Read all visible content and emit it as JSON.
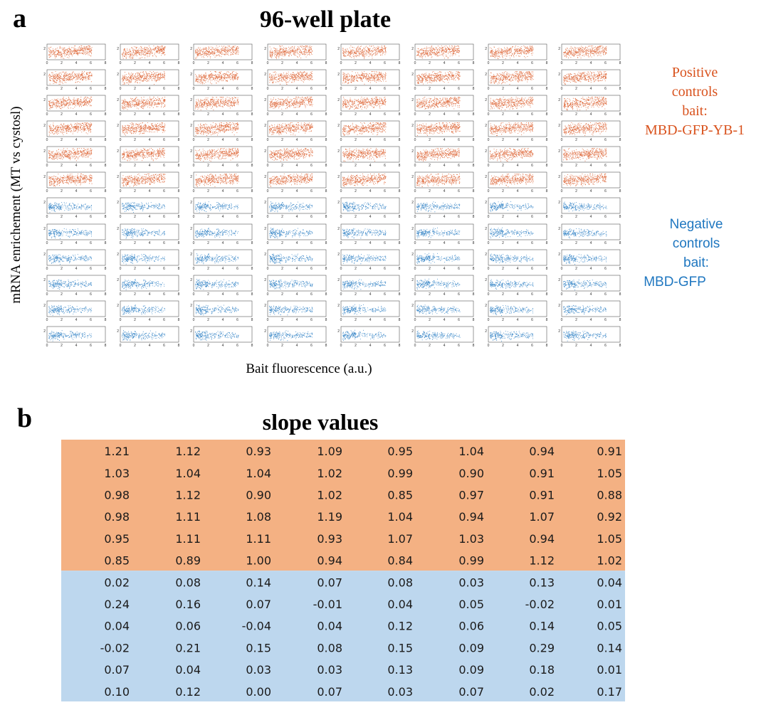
{
  "panel_a": {
    "letter": "a",
    "title": "96-well plate",
    "ylabel": "mRNA enrichement (MT vs cystosl)",
    "xlabel": "Bait fluorescence (a.u.)",
    "tick_labels_x": [
      "0",
      "2",
      "4",
      "6",
      "8"
    ],
    "tick_label_y": "2",
    "positive_label": [
      "Positive",
      "controls",
      "bait:",
      "MBD-GFP-YB-1"
    ],
    "negative_label": [
      "Negative",
      "controls",
      "bait:",
      "MBD-GFP"
    ],
    "colors": {
      "positive": "#d9531e",
      "negative": "#1f77c0"
    }
  },
  "panel_b": {
    "letter": "b",
    "title": "slope values",
    "colors": {
      "positive_bg": "#f4b183",
      "negative_bg": "#bdd7ee"
    }
  },
  "chart_data": [
    {
      "type": "scatter",
      "title": "96-well plate",
      "xlabel": "Bait fluorescence (a.u.)",
      "ylabel": "mRNA enrichement (MT vs cystosl)",
      "grid": "12 rows x 8 columns of small scatter plots",
      "xlim": [
        0,
        8
      ],
      "rows_positive": 6,
      "rows_negative": 6,
      "series": [
        {
          "name": "Positive controls bait: MBD-GFP-YB-1",
          "rows": [
            1,
            2,
            3,
            4,
            5,
            6
          ]
        },
        {
          "name": "Negative controls bait: MBD-GFP",
          "rows": [
            7,
            8,
            9,
            10,
            11,
            12
          ]
        }
      ]
    },
    {
      "type": "table",
      "title": "slope values",
      "rows": [
        [
          "1.21",
          "1.12",
          "0.93",
          "1.09",
          "0.95",
          "1.04",
          "0.94",
          "0.91"
        ],
        [
          "1.03",
          "1.04",
          "1.04",
          "1.02",
          "0.99",
          "0.90",
          "0.91",
          "1.05"
        ],
        [
          "0.98",
          "1.12",
          "0.90",
          "1.02",
          "0.85",
          "0.97",
          "0.91",
          "0.88"
        ],
        [
          "0.98",
          "1.11",
          "1.08",
          "1.19",
          "1.04",
          "0.94",
          "1.07",
          "0.92"
        ],
        [
          "0.95",
          "1.11",
          "1.11",
          "0.93",
          "1.07",
          "1.03",
          "0.94",
          "1.05"
        ],
        [
          "0.85",
          "0.89",
          "1.00",
          "0.94",
          "0.84",
          "0.99",
          "1.12",
          "1.02"
        ],
        [
          "0.02",
          "0.08",
          "0.14",
          "0.07",
          "0.08",
          "0.03",
          "0.13",
          "0.04"
        ],
        [
          "0.24",
          "0.16",
          "0.07",
          "-0.01",
          "0.04",
          "0.05",
          "-0.02",
          "0.01"
        ],
        [
          "0.04",
          "0.06",
          "-0.04",
          "0.04",
          "0.12",
          "0.06",
          "0.14",
          "0.05"
        ],
        [
          "-0.02",
          "0.21",
          "0.15",
          "0.08",
          "0.15",
          "0.09",
          "0.29",
          "0.14"
        ],
        [
          "0.07",
          "0.04",
          "0.03",
          "0.03",
          "0.13",
          "0.09",
          "0.18",
          "0.01"
        ],
        [
          "0.10",
          "0.12",
          "0.00",
          "0.07",
          "0.03",
          "0.07",
          "0.02",
          "0.17"
        ]
      ]
    }
  ]
}
